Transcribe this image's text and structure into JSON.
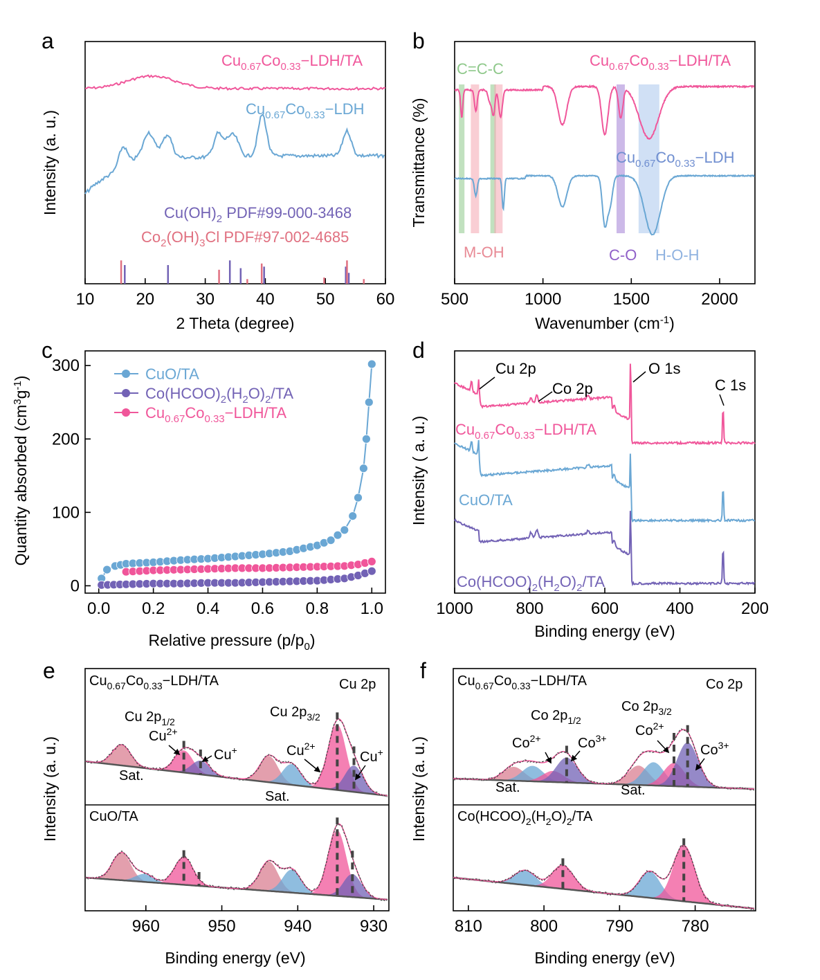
{
  "colors": {
    "pink": "#f0569a",
    "blue": "#6aa7d4",
    "purple": "#7262b5",
    "red": "#e07080",
    "green": "#8ec88a",
    "lightblue": "#a9c7ec",
    "violet": "#a27fd6",
    "gray": "#555555"
  },
  "panels": {
    "a": {
      "label": "a"
    },
    "b": {
      "label": "b"
    },
    "c": {
      "label": "c"
    },
    "d": {
      "label": "d"
    },
    "e": {
      "label": "e"
    },
    "f": {
      "label": "f"
    }
  },
  "chart_data": [
    {
      "panel": "a",
      "type": "line",
      "xlabel": "2 Theta (degree)",
      "ylabel": "Intensity (a. u.)",
      "xlim": [
        10,
        60
      ],
      "xticks": [
        "10",
        "20",
        "30",
        "40",
        "50",
        "60"
      ],
      "series": [
        {
          "name": "Cu0.67Co0.33−LDH/TA",
          "peaks": [
            [
              21,
              0.25
            ]
          ]
        },
        {
          "name": "Cu0.67Co0.33−LDH",
          "peaks": [
            [
              16.3,
              0.5
            ],
            [
              20.5,
              0.4
            ],
            [
              23.8,
              0.45
            ],
            [
              32.1,
              0.55
            ],
            [
              33.8,
              0.35
            ],
            [
              35.0,
              0.4
            ],
            [
              39.5,
              1.0
            ],
            [
              53.6,
              0.6
            ]
          ]
        }
      ],
      "reference_sticks": [
        {
          "name": "Cu(OH)2 PDF#99-000-3468",
          "x": [
            16.6,
            23.8,
            34.1,
            35.9,
            39.8,
            53.4,
            53.9
          ],
          "h": [
            0.6,
            0.6,
            0.75,
            0.5,
            0.55,
            0.55,
            0.35
          ]
        },
        {
          "name": "Co2(OH)3Cl PDF#97-002-4685",
          "x": [
            16.0,
            32.3,
            37.0,
            39.4,
            49.8,
            53.6,
            56.4
          ],
          "h": [
            0.75,
            0.45,
            0.15,
            0.65,
            0.2,
            0.75,
            0.15
          ]
        }
      ],
      "labels": {
        "ldh_ta": "Cu0.67Co0.33−LDH/TA",
        "ldh": "Cu0.67Co0.33−LDH",
        "pdf1": "Cu(OH)2 PDF#99-000-3468",
        "pdf2": "Co2(OH)3Cl PDF#97-002-4685"
      }
    },
    {
      "panel": "b",
      "type": "line",
      "xlabel": "Wavenumber (cm-1)",
      "ylabel": "Transmittance (%)",
      "xlim": [
        500,
        2200
      ],
      "xticks": [
        "500",
        "1000",
        "1500",
        "2000"
      ],
      "series": [
        {
          "name": "Cu0.67Co0.33−LDH/TA",
          "dips": [
            [
              540,
              0.5
            ],
            [
              620,
              0.35
            ],
            [
              720,
              0.45
            ],
            [
              760,
              0.5
            ],
            [
              1110,
              0.55
            ],
            [
              1350,
              0.6
            ],
            [
              1440,
              0.6
            ],
            [
              1610,
              0.85
            ]
          ]
        },
        {
          "name": "Cu0.67Co0.33−LDH",
          "dips": [
            [
              620,
              0.4
            ],
            [
              775,
              0.5
            ],
            [
              1110,
              0.5
            ],
            [
              1350,
              0.75
            ],
            [
              1610,
              0.95
            ]
          ]
        }
      ],
      "bands": [
        {
          "name": "C=C-C",
          "x": [
            538,
            718
          ]
        },
        {
          "name": "M-OH",
          "x": [
            615,
            748
          ]
        },
        {
          "name": "C-O",
          "x": [
            1440
          ]
        },
        {
          "name": "H-O-H",
          "x": [
            1600
          ]
        }
      ],
      "labels": {
        "ldh_ta": "Cu0.67Co0.33−LDH/TA",
        "ldh": "Cu0.67Co0.33−LDH",
        "cc": "C=C-C",
        "moh": "M-OH",
        "co": "C-O",
        "hoh": "H-O-H"
      }
    },
    {
      "panel": "c",
      "type": "scatter",
      "xlabel": "Relative pressure (p/p0)",
      "ylabel": "Quantity absorbed (cm3g-1)",
      "xlim": [
        -0.05,
        1.05
      ],
      "ylim": [
        -10,
        320
      ],
      "xticks": [
        "0.0",
        "0.2",
        "0.4",
        "0.6",
        "0.8",
        "1.0"
      ],
      "yticks": [
        "0",
        "100",
        "200",
        "300"
      ],
      "series": [
        {
          "name": "CuO/TA",
          "x": [
            0.01,
            0.03,
            0.06,
            0.1,
            0.2,
            0.3,
            0.4,
            0.5,
            0.6,
            0.7,
            0.8,
            0.85,
            0.9,
            0.93,
            0.95,
            0.97,
            0.98,
            0.99,
            1.0
          ],
          "y": [
            10,
            22,
            27,
            30,
            32,
            35,
            37,
            40,
            43,
            47,
            55,
            62,
            76,
            95,
            120,
            160,
            200,
            250,
            302
          ]
        },
        {
          "name": "Co(HCOO)2(H2O)2/TA",
          "x": [
            0.01,
            0.1,
            0.2,
            0.3,
            0.4,
            0.5,
            0.6,
            0.7,
            0.8,
            0.9,
            0.95,
            1.0
          ],
          "y": [
            1,
            2,
            3,
            3,
            4,
            4,
            5,
            6,
            7,
            10,
            14,
            20
          ]
        },
        {
          "name": "Cu0.67Co0.33−LDH/TA",
          "x": [
            0.1,
            0.2,
            0.3,
            0.4,
            0.5,
            0.6,
            0.7,
            0.8,
            0.9,
            0.95,
            1.0
          ],
          "y": [
            19,
            21,
            22,
            23,
            24,
            24,
            25,
            26,
            27,
            29,
            33
          ]
        }
      ],
      "legend": {
        "cuo": "CuO/TA",
        "co": "Co(HCOO)2(H2O)2/TA",
        "ldh": "Cu0.67Co0.33−LDH/TA"
      }
    },
    {
      "panel": "d",
      "type": "line",
      "xlabel": "Binding energy (eV)",
      "ylabel": "Intensity ( a. u.)",
      "xlim": [
        1000,
        200
      ],
      "xticks": [
        "1000",
        "800",
        "600",
        "400",
        "200"
      ],
      "series": [
        {
          "name": "Cu0.67Co0.33−LDH/TA"
        },
        {
          "name": "CuO/TA"
        },
        {
          "name": "Co(HCOO)2(H2O)2/TA"
        }
      ],
      "annotations": {
        "cu2p": "Cu 2p",
        "co2p": "Co 2p",
        "o1s": "O 1s",
        "c1s": "C 1s"
      },
      "labels": {
        "ldh": "Cu0.67Co0.33−LDH/TA",
        "cuo": "CuO/TA",
        "co": "Co(HCOO)2(H2O)2/TA"
      }
    },
    {
      "panel": "e",
      "type": "area",
      "xlabel": "Binding energy (eV)",
      "ylabel": "Intensity (a. u.)",
      "xlim": [
        968,
        928
      ],
      "xticks": [
        "960",
        "950",
        "940",
        "930"
      ],
      "top": {
        "name": "Cu0.67Co0.33−LDH/TA",
        "components": [
          {
            "label": "Sat.",
            "center": 963.2,
            "height": 0.3
          },
          {
            "label": "Cu 2p1/2 Cu2+",
            "center": 955.0,
            "height": 0.32
          },
          {
            "label": "Cu 2p1/2 Cu+",
            "center": 952.8,
            "height": 0.2
          },
          {
            "label": "Sat.",
            "center": 943.8,
            "height": 0.38
          },
          {
            "label": "Sat.",
            "center": 940.8,
            "height": 0.3
          },
          {
            "label": "Cu 2p3/2 Cu2+",
            "center": 934.8,
            "height": 0.95
          },
          {
            "label": "Cu 2p3/2 Cu+",
            "center": 932.6,
            "height": 0.38
          }
        ]
      },
      "bottom": {
        "name": "CuO/TA",
        "components": [
          {
            "center": 963.2,
            "height": 0.42
          },
          {
            "center": 960.2,
            "height": 0.12
          },
          {
            "center": 955.0,
            "height": 0.42
          },
          {
            "center": 943.8,
            "height": 0.45
          },
          {
            "center": 940.8,
            "height": 0.35
          },
          {
            "center": 934.8,
            "height": 1.0
          },
          {
            "center": 932.8,
            "height": 0.35
          }
        ]
      },
      "labels": {
        "title_top": "Cu0.67Co0.33−LDH/TA",
        "title_bottom": "CuO/TA",
        "region": "Cu 2p",
        "p12": "Cu 2p1/2",
        "p32": "Cu 2p3/2",
        "cu2": "Cu2+",
        "cu1": "Cu+",
        "sat": "Sat."
      }
    },
    {
      "panel": "f",
      "type": "area",
      "xlabel": "Binding energy (eV)",
      "ylabel": "Intensity (a. u.)",
      "xlim": [
        812,
        772
      ],
      "xticks": [
        "810",
        "800",
        "790",
        "780"
      ],
      "top": {
        "name": "Cu0.67Co0.33−LDH/TA",
        "components": [
          {
            "label": "Sat.",
            "center": 804,
            "height": 0.25
          },
          {
            "label": "Sat.",
            "center": 801.5,
            "height": 0.28
          },
          {
            "label": "Co 2p1/2 Co2+",
            "center": 798.8,
            "height": 0.2
          },
          {
            "label": "Co 2p1/2 Co3+",
            "center": 797.0,
            "height": 0.45
          },
          {
            "label": "Sat.",
            "center": 787.5,
            "height": 0.35
          },
          {
            "label": "Sat.",
            "center": 785.5,
            "height": 0.42
          },
          {
            "label": "Co 2p3/2 Co2+",
            "center": 782.8,
            "height": 0.42
          },
          {
            "label": "Co 2p3/2 Co3+",
            "center": 781.0,
            "height": 0.8
          }
        ]
      },
      "bottom": {
        "name": "Co(HCOO)2(H2O)2/TA",
        "components": [
          {
            "center": 802.5,
            "height": 0.25
          },
          {
            "center": 797.5,
            "height": 0.4
          },
          {
            "center": 786.0,
            "height": 0.45
          },
          {
            "center": 781.5,
            "height": 0.95
          }
        ]
      },
      "labels": {
        "title_top": "Cu0.67Co0.33−LDH/TA",
        "title_bottom": "Co(HCOO)2(H2O)2/TA",
        "region": "Co 2p",
        "p12": "Co 2p1/2",
        "p32": "Co 2p3/2",
        "co2": "Co2+",
        "co3": "Co3+",
        "sat": "Sat."
      }
    }
  ]
}
